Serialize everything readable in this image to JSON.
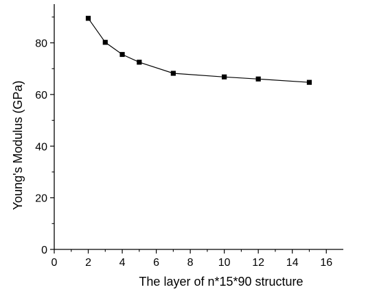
{
  "chart_data": {
    "type": "line",
    "title": "",
    "xlabel": "The layer of n*15*90 structure",
    "ylabel": "Young's Modulus (GPa)",
    "xlim": [
      0,
      17
    ],
    "ylim": [
      0,
      95
    ],
    "x_major_ticks": [
      0,
      2,
      4,
      6,
      8,
      10,
      12,
      14,
      16
    ],
    "x_minor_ticks": [
      1,
      3,
      5,
      7,
      9,
      11,
      13,
      15
    ],
    "y_major_ticks": [
      0,
      20,
      40,
      60,
      80
    ],
    "y_minor_ticks": [
      10,
      30,
      50,
      70,
      90
    ],
    "grid": false,
    "legend": "none",
    "series": [
      {
        "marker": "square",
        "color": "#000000",
        "points": [
          {
            "x": 2,
            "y": 89.5
          },
          {
            "x": 3,
            "y": 80.2
          },
          {
            "x": 4,
            "y": 75.5
          },
          {
            "x": 5,
            "y": 72.5
          },
          {
            "x": 7,
            "y": 68.2
          },
          {
            "x": 10,
            "y": 66.8
          },
          {
            "x": 12,
            "y": 66.0
          },
          {
            "x": 15,
            "y": 64.7
          }
        ]
      }
    ]
  }
}
